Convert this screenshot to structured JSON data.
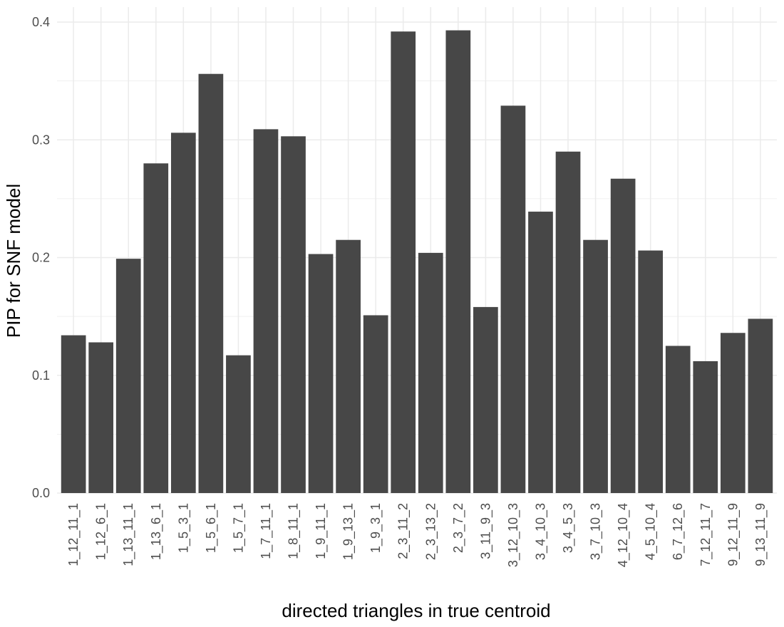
{
  "chart_data": {
    "type": "bar",
    "xlabel": "directed triangles in true centroid",
    "ylabel": "PIP for SNF model",
    "ylim": [
      0,
      0.4
    ],
    "y_ticks": [
      "0.0",
      "0.1",
      "0.2",
      "0.3",
      "0.4"
    ],
    "y_tick_values": [
      0,
      0.1,
      0.2,
      0.3,
      0.4
    ],
    "grid": true,
    "legend": "none",
    "bar_color": "#474747",
    "grid_color": "#ebebeb",
    "categories": [
      "1_12_11_1",
      "1_12_6_1",
      "1_13_11_1",
      "1_13_6_1",
      "1_5_3_1",
      "1_5_6_1",
      "1_5_7_1",
      "1_7_11_1",
      "1_8_11_1",
      "1_9_11_1",
      "1_9_13_1",
      "1_9_3_1",
      "2_3_11_2",
      "2_3_13_2",
      "2_3_7_2",
      "3_11_9_3",
      "3_12_10_3",
      "3_4_10_3",
      "3_4_5_3",
      "3_7_10_3",
      "4_12_10_4",
      "4_5_10_4",
      "6_7_12_6",
      "7_12_11_7",
      "9_12_11_9",
      "9_13_11_9"
    ],
    "values": [
      0.134,
      0.128,
      0.199,
      0.28,
      0.306,
      0.356,
      0.117,
      0.309,
      0.303,
      0.203,
      0.215,
      0.151,
      0.392,
      0.204,
      0.393,
      0.158,
      0.329,
      0.239,
      0.29,
      0.215,
      0.267,
      0.206,
      0.125,
      0.112,
      0.136,
      0.148
    ]
  }
}
